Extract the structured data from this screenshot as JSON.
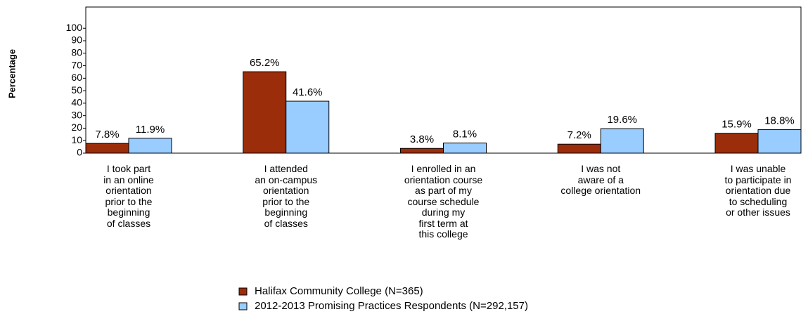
{
  "chart_data": {
    "type": "bar",
    "y_label": "Percentage",
    "categories": [
      "I took part\nin an online\norientation\nprior to the\nbeginning\nof classes",
      "I attended\nan on-campus\norientation\nprior to the\nbeginning\nof classes",
      "I enrolled in an\norientation course\nas part of my\ncourse schedule\nduring my\nfirst term at\nthis college",
      "I was not\naware of a\ncollege orientation",
      "I was unable\nto participate in\norientation due\nto scheduling\nor other issues"
    ],
    "series": [
      {
        "name": "Halifax  Community College (N=365)",
        "color": "#9b2d0a",
        "values": [
          7.8,
          65.2,
          3.8,
          7.2,
          15.9
        ],
        "value_labels": [
          "7.8%",
          "65.2%",
          "3.8%",
          "7.2%",
          "15.9%"
        ]
      },
      {
        "name": "2012-2013 Promising Practices Respondents (N=292,157)",
        "color": "#99ccff",
        "values": [
          11.9,
          41.6,
          8.1,
          19.6,
          18.8
        ],
        "value_labels": [
          "11.9%",
          "41.6%",
          "8.1%",
          "19.6%",
          "18.8%"
        ]
      }
    ],
    "ylim": [
      0,
      117
    ],
    "yticks": [
      0,
      10,
      20,
      30,
      40,
      50,
      60,
      70,
      80,
      90,
      100
    ],
    "grid": false
  }
}
